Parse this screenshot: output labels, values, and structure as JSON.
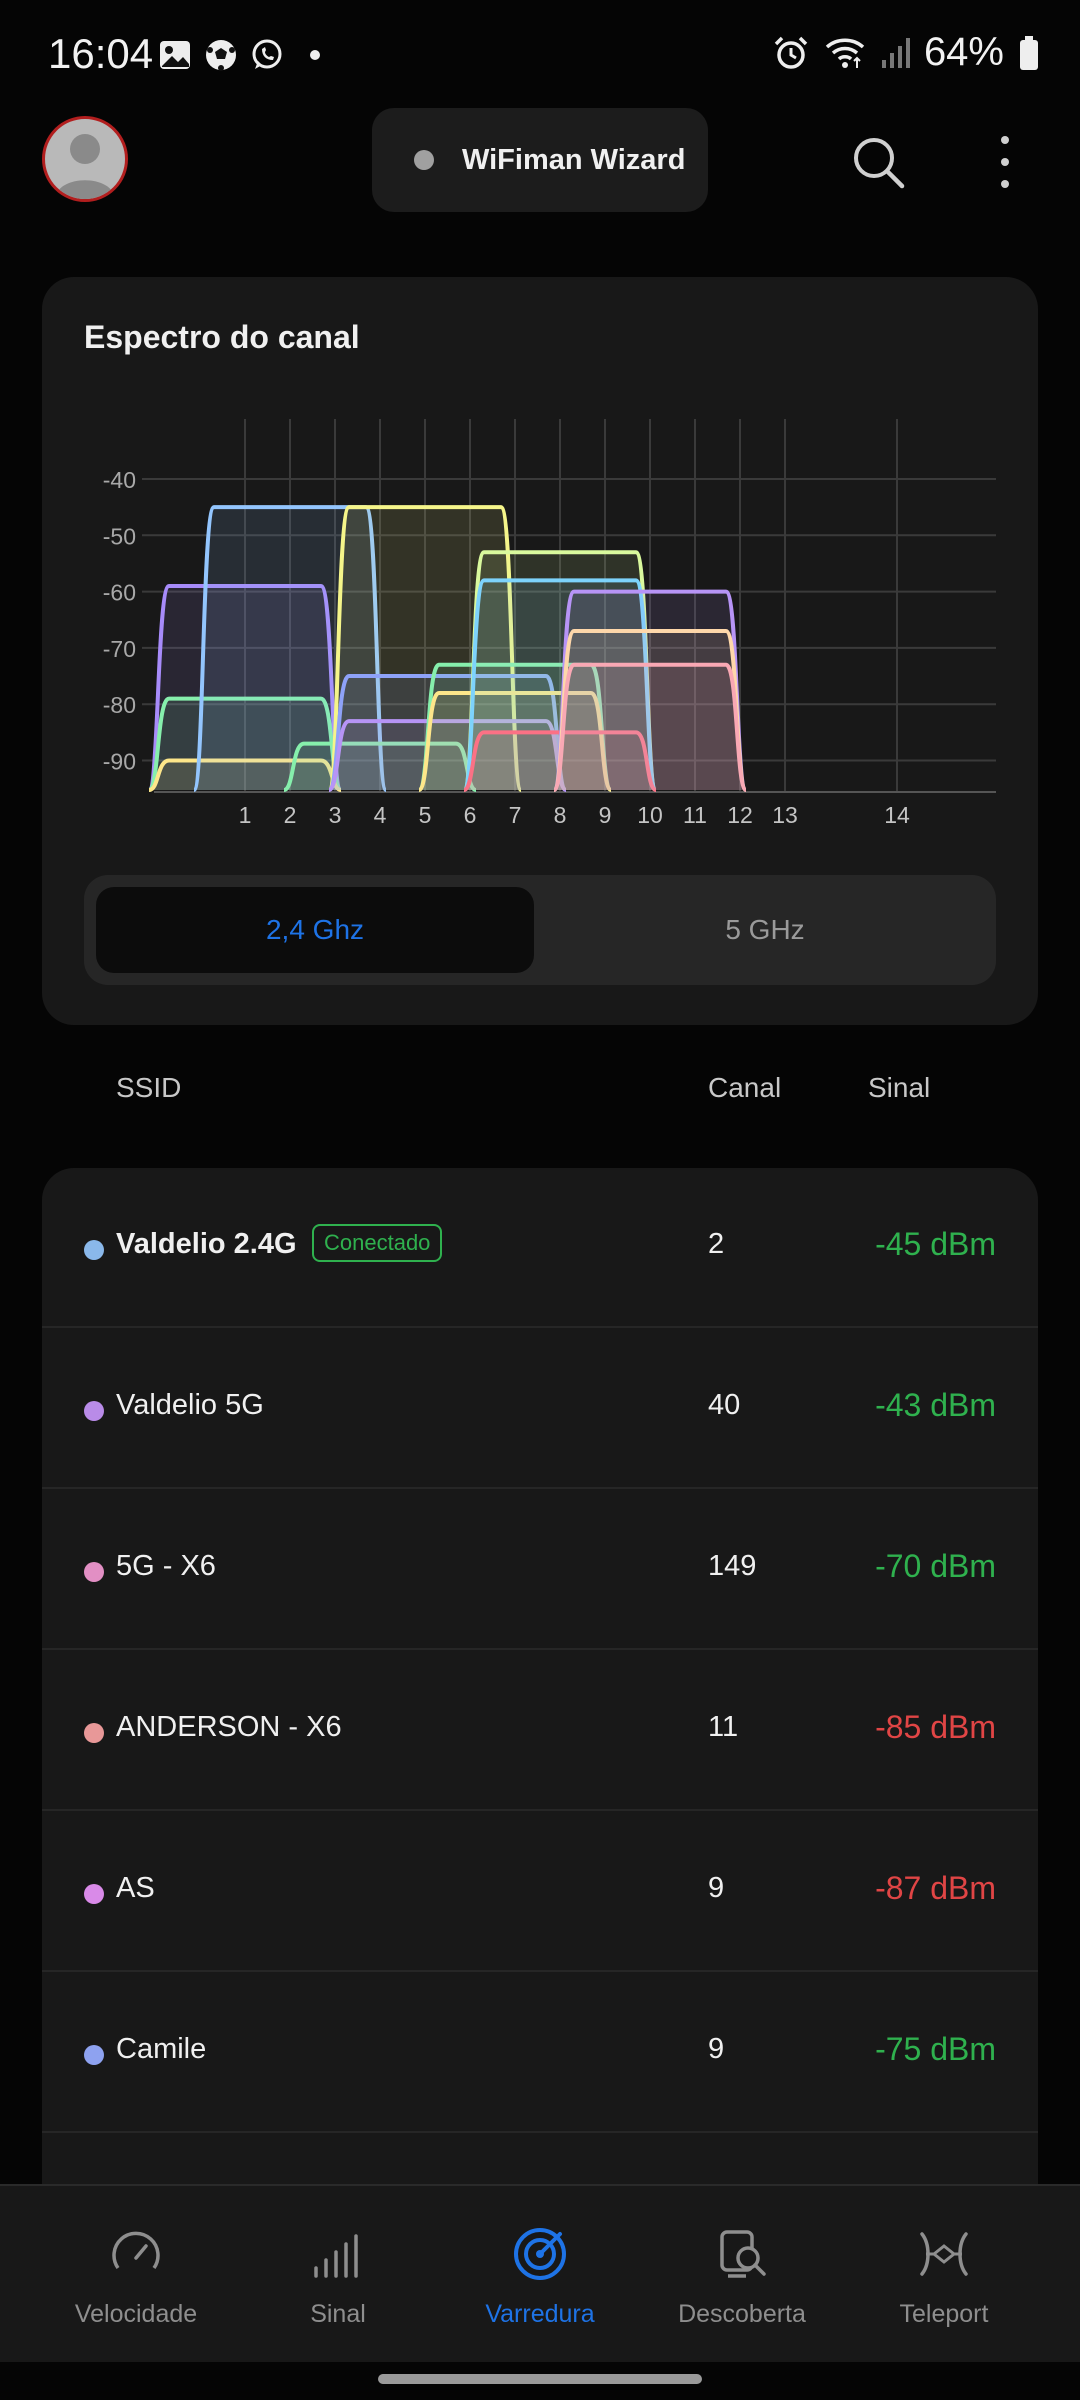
{
  "status_bar": {
    "time": "16:04",
    "battery": "64%",
    "left_icons": [
      "gallery-icon",
      "soccer-icon",
      "whatsapp-icon"
    ],
    "right_icons": [
      "alarm-icon",
      "wifi-icon",
      "signal-icon",
      "battery-icon"
    ]
  },
  "header": {
    "app_title": "WiFiman Wizard"
  },
  "spectrum": {
    "title": "Espectro do canal",
    "band_options": [
      "2,4 Ghz",
      "5 GHz"
    ],
    "selected_band": "2,4 Ghz"
  },
  "chart_data": {
    "type": "area",
    "title": "Espectro do canal",
    "x_ticks": [
      "1",
      "2",
      "3",
      "4",
      "5",
      "6",
      "7",
      "8",
      "9",
      "10",
      "11",
      "12",
      "13",
      "14"
    ],
    "y_ticks": [
      "-40",
      "-50",
      "-60",
      "-70",
      "-80",
      "-90"
    ],
    "ylim": [
      -95,
      -30
    ],
    "grid": true,
    "series": [
      {
        "channel_from": -1,
        "channel_to": 3,
        "level": -59,
        "color": "#a78bfa"
      },
      {
        "channel_from": -1,
        "channel_to": 3,
        "level": -79,
        "color": "#86efac"
      },
      {
        "channel_from": -1,
        "channel_to": 3,
        "level": -90,
        "color": "#fde68a"
      },
      {
        "channel_from": 0,
        "channel_to": 4,
        "level": -45,
        "color": "#93c5fd"
      },
      {
        "channel_from": 2,
        "channel_to": 6,
        "level": -87,
        "color": "#86efac"
      },
      {
        "channel_from": 3,
        "channel_to": 7,
        "level": -45,
        "color": "#f5f58a"
      },
      {
        "channel_from": 3,
        "channel_to": 8,
        "level": -75,
        "color": "#8ea2f8"
      },
      {
        "channel_from": 3,
        "channel_to": 8,
        "level": -83,
        "color": "#b794f6"
      },
      {
        "channel_from": 5,
        "channel_to": 9,
        "level": -73,
        "color": "#86efac"
      },
      {
        "channel_from": 5,
        "channel_to": 9,
        "level": -78,
        "color": "#fde68a"
      },
      {
        "channel_from": 6,
        "channel_to": 10,
        "level": -53,
        "color": "#d9f99d"
      },
      {
        "channel_from": 6,
        "channel_to": 10,
        "level": -58,
        "color": "#7dd3fc"
      },
      {
        "channel_from": 6,
        "channel_to": 10,
        "level": -85,
        "color": "#fb7185"
      },
      {
        "channel_from": 8,
        "channel_to": 12,
        "level": -60,
        "color": "#b794f6"
      },
      {
        "channel_from": 8,
        "channel_to": 12,
        "level": -67,
        "color": "#fed7aa"
      },
      {
        "channel_from": 8,
        "channel_to": 12,
        "level": -73,
        "color": "#f9a8b4"
      }
    ]
  },
  "table": {
    "headers": {
      "ssid": "SSID",
      "channel": "Canal",
      "signal": "Sinal"
    }
  },
  "networks": [
    {
      "ssid": "Valdelio 2.4G",
      "badge": "Conectado",
      "channel": "2",
      "signal": "-45 dBm",
      "dot_color": "#8ab8ea",
      "signal_color": "#2fb14e",
      "bold": true
    },
    {
      "ssid": " Valdelio 5G",
      "badge": "",
      "channel": "40",
      "signal": "-43 dBm",
      "dot_color": "#b98be8",
      "signal_color": "#2fb14e",
      "bold": false
    },
    {
      "ssid": "5G - X6",
      "badge": "",
      "channel": "149",
      "signal": "-70 dBm",
      "dot_color": "#e28fc4",
      "signal_color": "#2fb14e",
      "bold": false
    },
    {
      "ssid": "ANDERSON - X6",
      "badge": "",
      "channel": "11",
      "signal": "-85 dBm",
      "dot_color": "#e89898",
      "signal_color": "#e04545",
      "bold": false
    },
    {
      "ssid": "AS",
      "badge": "",
      "channel": "9",
      "signal": "-87 dBm",
      "dot_color": "#d98ae8",
      "signal_color": "#e04545",
      "bold": false
    },
    {
      "ssid": "Camile",
      "badge": "",
      "channel": "9",
      "signal": "-75 dBm",
      "dot_color": "#8ea2f0",
      "signal_color": "#2fb14e",
      "bold": false
    }
  ],
  "bottom_nav": {
    "items": [
      {
        "label": "Velocidade",
        "icon": "speedometer-icon"
      },
      {
        "label": "Sinal",
        "icon": "signal-bars-icon"
      },
      {
        "label": "Varredura",
        "icon": "radar-icon"
      },
      {
        "label": "Descoberta",
        "icon": "device-discovery-icon"
      },
      {
        "label": "Teleport",
        "icon": "teleport-icon"
      }
    ],
    "active": "Varredura"
  }
}
